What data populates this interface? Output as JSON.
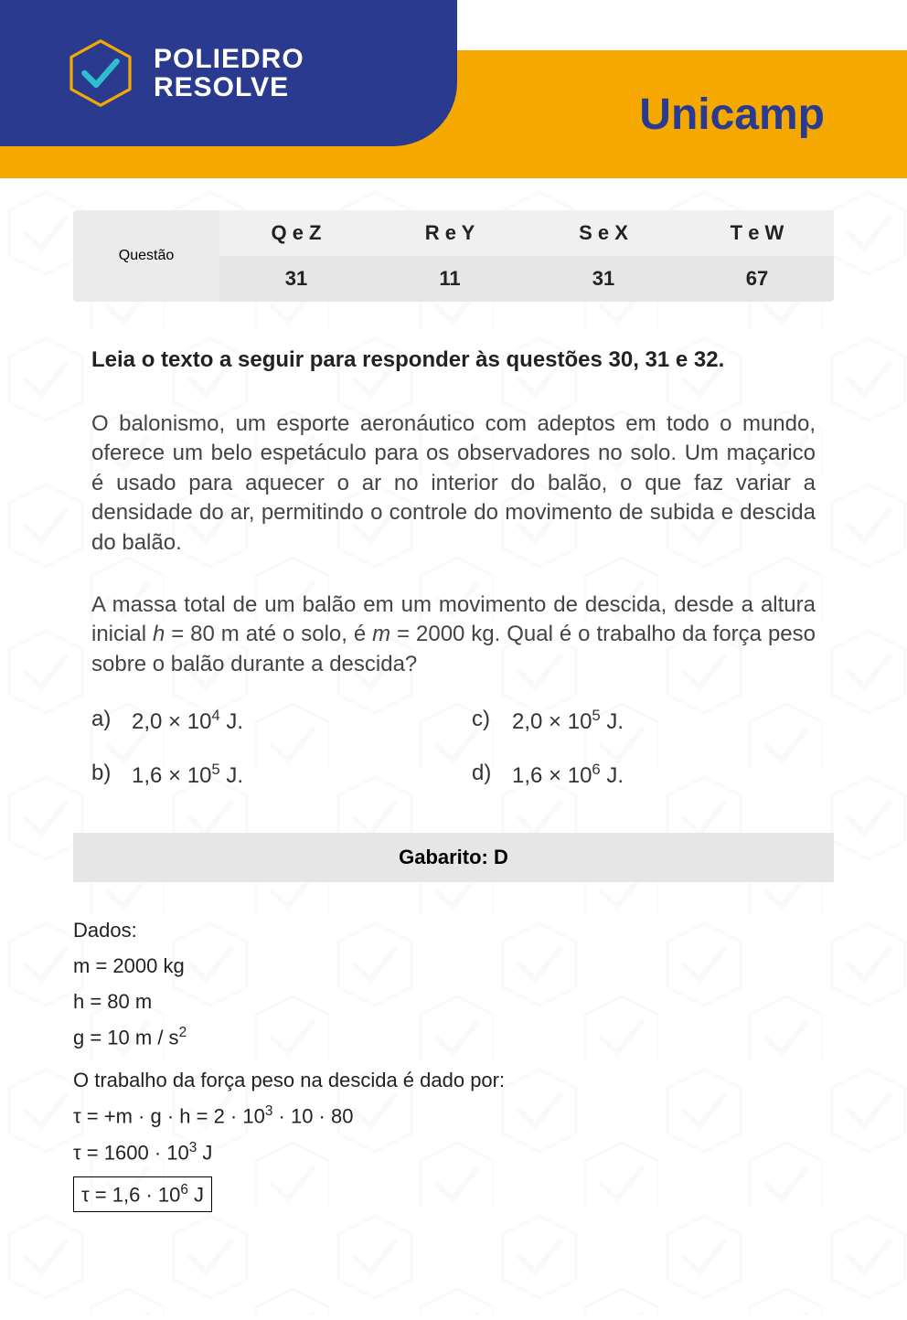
{
  "header": {
    "brand_line1": "POLIEDRO",
    "brand_line2": "RESOLVE",
    "university": "Unicamp",
    "colors": {
      "blue": "#2a3b8f",
      "yellow": "#f5a800",
      "logo_stroke": "#f5a800",
      "logo_check": "#2fbecf"
    }
  },
  "question_table": {
    "label": "Questão",
    "columns": [
      "Q e Z",
      "R e Y",
      "S e X",
      "T e W"
    ],
    "values": [
      "31",
      "11",
      "31",
      "67"
    ]
  },
  "instruction": "Leia o texto a seguir para responder às questões 30, 31 e 32.",
  "passage": "O balonismo, um esporte aeronáutico com adeptos em todo o mundo, oferece um belo espetáculo para os observadores no solo. Um maçarico é usado para aquecer o ar no interior do balão, o que faz variar a densidade do ar, permitindo o controle do movimento de subida e descida do balão.",
  "question_text_html": "A massa total de um balão em um movimento de descida, desde a altura inicial <span class='ital'>h</span> = 80 m  até o solo, é <span class='ital'>m</span> = 2000 kg. Qual é o trabalho da força peso sobre o balão durante a descida?",
  "alternatives": {
    "a": {
      "label": "a)",
      "html": "2,0 × 10<sup>4</sup> J."
    },
    "b": {
      "label": "b)",
      "html": "1,6 × 10<sup>5</sup> J."
    },
    "c": {
      "label": "c)",
      "html": "2,0 × 10<sup>5</sup> J."
    },
    "d": {
      "label": "d)",
      "html": "1,6 × 10<sup>6</sup> J."
    }
  },
  "answer": {
    "label": "Gabarito: D"
  },
  "solution": {
    "lines": [
      "Dados:",
      "m = 2000 kg",
      "h = 80 m",
      "g = 10 m / s<sup>2</sup>",
      "O trabalho da força peso na descida é dado por:",
      "τ = +m · g · h = 2 · 10<sup>3</sup> · 10 · 80",
      "τ = 1600 · 10<sup>3</sup>  J"
    ],
    "boxed": "τ = 1,6 · 10<sup>6</sup>  J"
  },
  "style": {
    "page_bg": "#ffffff",
    "table_bg1": "#f0f0f0",
    "table_bg2": "#e6e6e6",
    "text_color": "#222222",
    "body_text_color": "#444444",
    "pattern_color": "#d0d6e8"
  }
}
